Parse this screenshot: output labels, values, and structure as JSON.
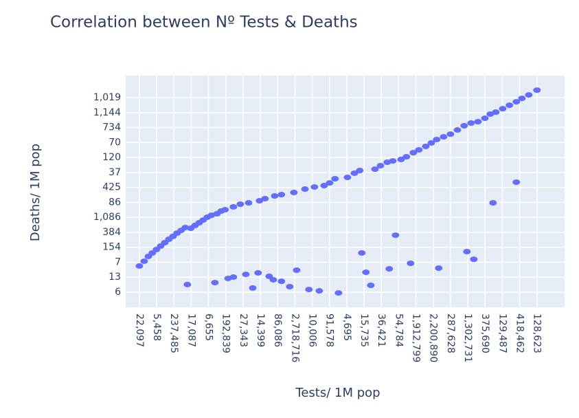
{
  "chart_data": {
    "type": "scatter",
    "title": "Correlation between Nº Tests & Deaths",
    "x_label": "Tests/ 1M pop",
    "y_label": "Deaths/ 1M pop",
    "color": "#636efa",
    "grid": true,
    "xlim": [
      -0.79,
      24.6
    ],
    "ylim": [
      -1.01,
      14.47
    ],
    "xticks": [
      {
        "value": 0,
        "label": "22,097"
      },
      {
        "value": 1,
        "label": "5,458"
      },
      {
        "value": 2,
        "label": "237,485"
      },
      {
        "value": 3,
        "label": "17,087"
      },
      {
        "value": 4,
        "label": "6,655"
      },
      {
        "value": 5,
        "label": "192,839"
      },
      {
        "value": 6,
        "label": "27,343"
      },
      {
        "value": 7,
        "label": "14,399"
      },
      {
        "value": 8,
        "label": "86,086"
      },
      {
        "value": 9,
        "label": "2,718,716"
      },
      {
        "value": 10,
        "label": "10,006"
      },
      {
        "value": 11,
        "label": "91,578"
      },
      {
        "value": 12,
        "label": "4,695"
      },
      {
        "value": 13,
        "label": "15,735"
      },
      {
        "value": 14,
        "label": "36,421"
      },
      {
        "value": 15,
        "label": "54,784"
      },
      {
        "value": 16,
        "label": "1,912,799"
      },
      {
        "value": 17,
        "label": "2,200,890"
      },
      {
        "value": 18,
        "label": "287,628"
      },
      {
        "value": 19,
        "label": "1,302,731"
      },
      {
        "value": 20,
        "label": "375,690"
      },
      {
        "value": 21,
        "label": "129,487"
      },
      {
        "value": 22,
        "label": "418,462"
      },
      {
        "value": 23,
        "label": "128,623"
      }
    ],
    "yticks": [
      {
        "value": 0,
        "label": "6"
      },
      {
        "value": 1,
        "label": "13"
      },
      {
        "value": 2,
        "label": "7"
      },
      {
        "value": 3,
        "label": "154"
      },
      {
        "value": 4,
        "label": "384"
      },
      {
        "value": 5,
        "label": "1,086"
      },
      {
        "value": 6,
        "label": "86"
      },
      {
        "value": 7,
        "label": "425"
      },
      {
        "value": 8,
        "label": "37"
      },
      {
        "value": 9,
        "label": "120"
      },
      {
        "value": 10,
        "label": "70"
      },
      {
        "value": 11,
        "label": "734"
      },
      {
        "value": 12,
        "label": "1,144"
      },
      {
        "value": 13,
        "label": "1,019"
      }
    ],
    "x": [
      0,
      0.28,
      0.52,
      0.75,
      0.99,
      1.23,
      1.47,
      1.71,
      1.95,
      2.18,
      2.42,
      2.66,
      2.98,
      3.22,
      3.46,
      3.69,
      3.93,
      4.17,
      4.49,
      4.73,
      4.96,
      5.44,
      5.84,
      6.32,
      6.95,
      7.27,
      7.83,
      8.22,
      8.94,
      9.58,
      10.13,
      10.69,
      11.01,
      11.32,
      12.04,
      12.44,
      12.75,
      13.63,
      13.95,
      14.34,
      14.66,
      15.14,
      15.45,
      15.85,
      16.17,
      16.57,
      16.89,
      17.2,
      17.6,
      18.0,
      18.4,
      18.79,
      19.19,
      19.59,
      19.99,
      20.3,
      20.62,
      21.02,
      21.41,
      21.81,
      22.13,
      22.53,
      23.0,
      2.78,
      4.37,
      5.13,
      5.44,
      6.16,
      6.56,
      6.87,
      7.51,
      7.75,
      8.22,
      8.7,
      9.1,
      9.81,
      10.41,
      11.52,
      12.87,
      13.11,
      13.39,
      14.46,
      14.82,
      15.69,
      17.32,
      18.95,
      19.35,
      20.46,
      21.81
    ],
    "values": [
      1.75,
      2.07,
      2.39,
      2.62,
      2.85,
      3.08,
      3.31,
      3.54,
      3.73,
      3.95,
      4.13,
      4.32,
      4.27,
      4.46,
      4.64,
      4.82,
      5.01,
      5.14,
      5.24,
      5.42,
      5.51,
      5.7,
      5.88,
      5.97,
      6.11,
      6.25,
      6.43,
      6.52,
      6.66,
      6.89,
      7.03,
      7.12,
      7.3,
      7.58,
      7.67,
      7.95,
      8.13,
      8.22,
      8.45,
      8.68,
      8.77,
      8.87,
      9.05,
      9.32,
      9.51,
      9.74,
      9.97,
      10.2,
      10.38,
      10.56,
      10.84,
      11.12,
      11.3,
      11.39,
      11.62,
      11.9,
      12.03,
      12.26,
      12.49,
      12.72,
      12.95,
      13.18,
      13.5,
      0.51,
      0.64,
      0.92,
      1.01,
      1.19,
      0.28,
      1.29,
      1.06,
      0.83,
      0.73,
      0.37,
      1.47,
      0.18,
      0.09,
      -0.05,
      2.62,
      1.33,
      0.46,
      1.56,
      3.81,
      1.93,
      1.61,
      2.71,
      2.2,
      5.97,
      7.35
    ]
  }
}
